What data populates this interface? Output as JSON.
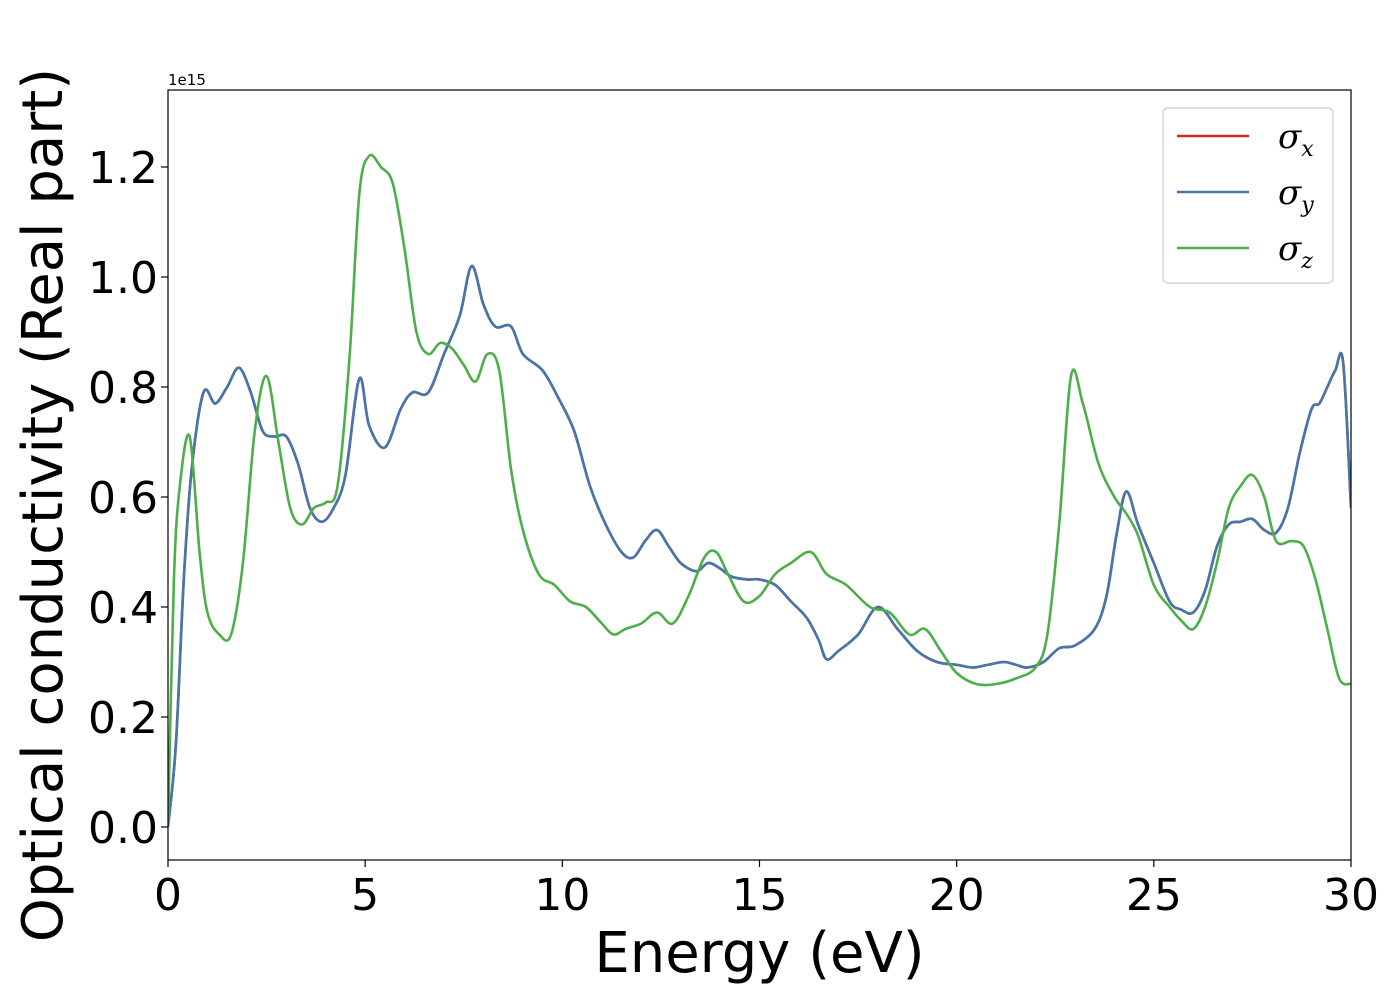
{
  "chart_data": {
    "type": "line",
    "xlabel": "Energy (eV)",
    "ylabel": "Optical conductivity (Real part)",
    "y_offset_label": "1e15",
    "xlim": [
      0,
      30
    ],
    "ylim": [
      -0.06,
      1.34
    ],
    "x_ticks": [
      0,
      5,
      10,
      15,
      20,
      25,
      30
    ],
    "x_tick_labels": [
      "0",
      "5",
      "10",
      "15",
      "20",
      "25",
      "30"
    ],
    "y_ticks": [
      0.0,
      0.2,
      0.4,
      0.6,
      0.8,
      1.0,
      1.2
    ],
    "y_tick_labels": [
      "0.0",
      "0.2",
      "0.4",
      "0.6",
      "0.8",
      "1.0",
      "1.2"
    ],
    "grid": false,
    "legend_position": "top-right",
    "series": [
      {
        "name": "σx",
        "symbol": "σ",
        "subscript": "x",
        "color": "#d62728",
        "x": [
          0,
          0.2,
          0.4,
          0.6,
          0.9,
          1.2,
          1.5,
          1.8,
          2.1,
          2.4,
          2.7,
          3.0,
          3.3,
          3.6,
          3.9,
          4.2,
          4.5,
          4.85,
          5.1,
          5.5,
          5.9,
          6.2,
          6.6,
          7.0,
          7.4,
          7.7,
          8.0,
          8.3,
          8.7,
          9.0,
          9.5,
          9.9,
          10.3,
          10.7,
          11.1,
          11.5,
          11.8,
          12.1,
          12.4,
          12.7,
          13.0,
          13.4,
          13.7,
          14.0,
          14.3,
          14.7,
          15.0,
          15.4,
          15.8,
          16.2,
          16.5,
          16.7,
          17.0,
          17.5,
          18.0,
          18.5,
          19.0,
          19.5,
          20.0,
          20.4,
          20.8,
          21.2,
          21.5,
          21.8,
          22.2,
          22.6,
          23.0,
          23.5,
          23.8,
          24.05,
          24.3,
          24.6,
          25.0,
          25.4,
          25.7,
          26.0,
          26.3,
          26.6,
          26.9,
          27.2,
          27.5,
          27.8,
          28.1,
          28.4,
          28.7,
          29.0,
          29.2,
          29.4,
          29.6,
          29.8,
          30.0
        ],
        "y": [
          0.0,
          0.15,
          0.45,
          0.65,
          0.79,
          0.77,
          0.8,
          0.835,
          0.79,
          0.72,
          0.71,
          0.71,
          0.66,
          0.58,
          0.555,
          0.58,
          0.64,
          0.815,
          0.73,
          0.69,
          0.76,
          0.79,
          0.79,
          0.86,
          0.93,
          1.02,
          0.95,
          0.91,
          0.91,
          0.86,
          0.83,
          0.78,
          0.72,
          0.62,
          0.55,
          0.5,
          0.49,
          0.52,
          0.54,
          0.51,
          0.48,
          0.465,
          0.48,
          0.47,
          0.455,
          0.45,
          0.45,
          0.44,
          0.41,
          0.38,
          0.34,
          0.305,
          0.32,
          0.35,
          0.4,
          0.36,
          0.32,
          0.3,
          0.295,
          0.29,
          0.295,
          0.3,
          0.295,
          0.29,
          0.3,
          0.325,
          0.33,
          0.36,
          0.42,
          0.53,
          0.61,
          0.55,
          0.48,
          0.41,
          0.395,
          0.39,
          0.43,
          0.51,
          0.55,
          0.555,
          0.56,
          0.54,
          0.535,
          0.58,
          0.68,
          0.76,
          0.77,
          0.8,
          0.83,
          0.845,
          0.58
        ]
      },
      {
        "name": "σy",
        "symbol": "σ",
        "subscript": "y",
        "color": "#4477aa",
        "x": [
          0,
          0.2,
          0.4,
          0.6,
          0.9,
          1.2,
          1.5,
          1.8,
          2.1,
          2.4,
          2.7,
          3.0,
          3.3,
          3.6,
          3.9,
          4.2,
          4.5,
          4.85,
          5.1,
          5.5,
          5.9,
          6.2,
          6.6,
          7.0,
          7.4,
          7.7,
          8.0,
          8.3,
          8.7,
          9.0,
          9.5,
          9.9,
          10.3,
          10.7,
          11.1,
          11.5,
          11.8,
          12.1,
          12.4,
          12.7,
          13.0,
          13.4,
          13.7,
          14.0,
          14.3,
          14.7,
          15.0,
          15.4,
          15.8,
          16.2,
          16.5,
          16.7,
          17.0,
          17.5,
          18.0,
          18.5,
          19.0,
          19.5,
          20.0,
          20.4,
          20.8,
          21.2,
          21.5,
          21.8,
          22.2,
          22.6,
          23.0,
          23.5,
          23.8,
          24.05,
          24.3,
          24.6,
          25.0,
          25.4,
          25.7,
          26.0,
          26.3,
          26.6,
          26.9,
          27.2,
          27.5,
          27.8,
          28.1,
          28.4,
          28.7,
          29.0,
          29.2,
          29.4,
          29.6,
          29.8,
          30.0
        ],
        "y": [
          0.0,
          0.15,
          0.45,
          0.65,
          0.79,
          0.77,
          0.8,
          0.835,
          0.79,
          0.72,
          0.71,
          0.71,
          0.66,
          0.58,
          0.555,
          0.58,
          0.64,
          0.815,
          0.73,
          0.69,
          0.76,
          0.79,
          0.79,
          0.86,
          0.93,
          1.02,
          0.95,
          0.91,
          0.91,
          0.86,
          0.83,
          0.78,
          0.72,
          0.62,
          0.55,
          0.5,
          0.49,
          0.52,
          0.54,
          0.51,
          0.48,
          0.465,
          0.48,
          0.47,
          0.455,
          0.45,
          0.45,
          0.44,
          0.41,
          0.38,
          0.34,
          0.305,
          0.32,
          0.35,
          0.4,
          0.36,
          0.32,
          0.3,
          0.295,
          0.29,
          0.295,
          0.3,
          0.295,
          0.29,
          0.3,
          0.325,
          0.33,
          0.36,
          0.42,
          0.53,
          0.61,
          0.55,
          0.48,
          0.41,
          0.395,
          0.39,
          0.43,
          0.51,
          0.55,
          0.555,
          0.56,
          0.54,
          0.535,
          0.58,
          0.68,
          0.76,
          0.77,
          0.8,
          0.83,
          0.845,
          0.58
        ]
      },
      {
        "name": "σz",
        "symbol": "σ",
        "subscript": "z",
        "color": "#4daf4a",
        "x": [
          0,
          0.15,
          0.3,
          0.55,
          0.8,
          1.0,
          1.3,
          1.6,
          1.9,
          2.2,
          2.5,
          2.8,
          3.1,
          3.4,
          3.7,
          4.0,
          4.3,
          4.6,
          4.85,
          5.1,
          5.4,
          5.7,
          6.0,
          6.3,
          6.6,
          6.9,
          7.2,
          7.5,
          7.8,
          8.1,
          8.4,
          8.7,
          9.0,
          9.4,
          9.8,
          10.2,
          10.6,
          11.0,
          11.3,
          11.6,
          12.0,
          12.4,
          12.8,
          13.2,
          13.6,
          13.9,
          14.2,
          14.6,
          15.0,
          15.4,
          15.8,
          16.3,
          16.7,
          17.2,
          17.8,
          18.3,
          18.8,
          19.2,
          19.6,
          20.0,
          20.5,
          21.0,
          21.5,
          22.0,
          22.3,
          22.6,
          22.9,
          23.2,
          23.6,
          24.0,
          24.3,
          24.6,
          25.0,
          25.4,
          25.7,
          26.0,
          26.3,
          26.6,
          26.9,
          27.2,
          27.5,
          27.8,
          28.1,
          28.5,
          28.8,
          29.1,
          29.4,
          29.7,
          30.0
        ],
        "y": [
          0.0,
          0.45,
          0.62,
          0.71,
          0.5,
          0.39,
          0.35,
          0.35,
          0.48,
          0.72,
          0.82,
          0.7,
          0.58,
          0.55,
          0.58,
          0.59,
          0.62,
          0.85,
          1.15,
          1.22,
          1.2,
          1.17,
          1.05,
          0.9,
          0.86,
          0.88,
          0.87,
          0.84,
          0.81,
          0.86,
          0.83,
          0.65,
          0.54,
          0.46,
          0.44,
          0.41,
          0.4,
          0.37,
          0.35,
          0.36,
          0.37,
          0.39,
          0.37,
          0.42,
          0.49,
          0.5,
          0.46,
          0.41,
          0.42,
          0.46,
          0.48,
          0.5,
          0.46,
          0.44,
          0.4,
          0.39,
          0.35,
          0.36,
          0.32,
          0.28,
          0.26,
          0.26,
          0.27,
          0.29,
          0.35,
          0.55,
          0.82,
          0.77,
          0.66,
          0.6,
          0.57,
          0.53,
          0.44,
          0.4,
          0.375,
          0.36,
          0.4,
          0.48,
          0.58,
          0.62,
          0.64,
          0.6,
          0.52,
          0.52,
          0.51,
          0.45,
          0.36,
          0.27,
          0.26
        ]
      }
    ]
  }
}
